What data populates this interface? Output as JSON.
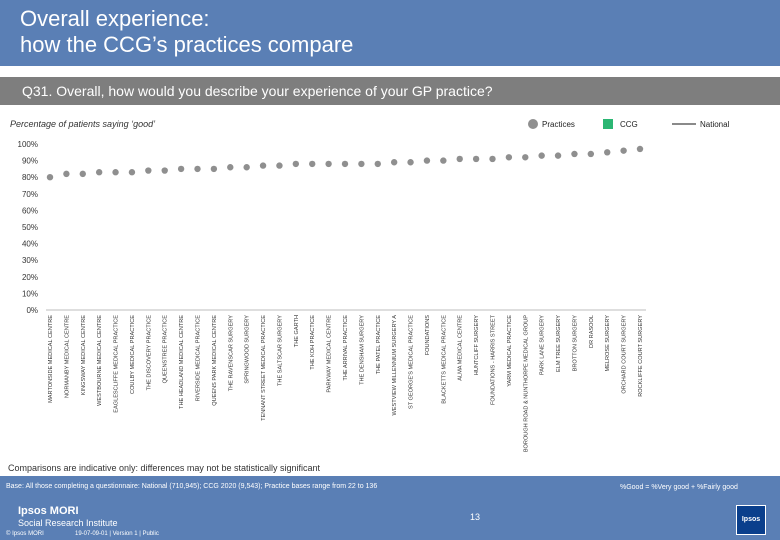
{
  "header": {
    "title_line1": "Overall experience:",
    "title_line2": "how the CCG’s practices compare",
    "question": "Q31. Overall, how would you describe your experience of your GP practice?"
  },
  "subtitle": "Percentage of patients saying ‘good’",
  "legend": {
    "practices_label": "Practices",
    "ccg_label": "CCG",
    "national_label": "National"
  },
  "colors": {
    "practice_dot": "#8f8f8f",
    "ccg": "#2bb673",
    "national_line": "#8a8a8a",
    "band": "#5a7fb5",
    "question_band": "#7e7e7e"
  },
  "chart_data": {
    "type": "scatter",
    "title": "Percentage of patients saying ‘good’",
    "xlabel": "",
    "ylabel": "",
    "ylim": [
      0,
      100
    ],
    "y_ticks": [
      "0%",
      "10%",
      "20%",
      "30%",
      "40%",
      "50%",
      "60%",
      "70%",
      "80%",
      "90%",
      "100%"
    ],
    "grid": false,
    "legend_position": "top-right",
    "categories": [
      "MARTONSIDE MEDICAL CENTRE",
      "NORMANBY MEDICAL CENTRE",
      "KINGSWAY MEDICAL CENTRE",
      "WESTBOURNE MEDICAL CENTRE",
      "EAGLESCLIFFE MEDICAL PRACTICE",
      "COULBY MEDICAL PRACTICE",
      "THE DISCOVERY PRACTICE",
      "QUEENSTREE PRACTICE",
      "THE HEADLAND MEDICAL CENTRE",
      "RIVERSIDE MEDICAL PRACTICE",
      "QUEENS PARK MEDICAL CENTRE",
      "THE RAVENSCAR SURGERY",
      "SPRINGWOOD SURGERY",
      "TENNANT STREET MEDICAL PRACTICE",
      "THE SALTSCAR SURGERY",
      "THE GARTH",
      "THE KOH PRACTICE",
      "PARKWAY MEDICAL CENTRE",
      "THE ARRIVAL PRACTICE",
      "THE DENSHAM SURGERY",
      "THE PATEL PRACTICE",
      "WESTVIEW MILLENNIUM SURGERY A",
      "ST GEORGE'S MEDICAL PRACTICE",
      "FOUNDATIONS",
      "BLACKETTS MEDICAL PRACTICE",
      "ALMA MEDICAL CENTRE",
      "HUNTCLIFF SURGERY",
      "FOUNDATIONS - HARRIS STREET",
      "YARM MEDICAL PRACTICE",
      "BOROUGH ROAD & NUNTHORPE MEDICAL GROUP",
      "PARK LANE SURGERY",
      "ELM TREE SURGERY",
      "BROTTON SURGERY",
      "DR RASOOL",
      "MELROSE SURGERY",
      "ORCHARD COURT SURGERY",
      "ROCKLIFFE COURT SURGERY"
    ],
    "series": [
      {
        "name": "Practices",
        "values": [
          80,
          82,
          82,
          83,
          83,
          83,
          84,
          84,
          85,
          85,
          85,
          86,
          86,
          87,
          87,
          88,
          88,
          88,
          88,
          88,
          88,
          89,
          89,
          90,
          90,
          91,
          91,
          91,
          92,
          92,
          93,
          93,
          94,
          94,
          95,
          96,
          97
        ]
      }
    ]
  },
  "notes": {
    "comparisons": "Comparisons are indicative only: differences may not be statistically significant"
  },
  "footer": {
    "base": "Base: All those completing a questionnaire: National (710,945); CCG 2020 (9,543); Practice bases range from 22 to 136",
    "formula": "%Good = %Very good + %Fairly good",
    "page_number": "13",
    "company": "Ipsos MORI",
    "institute": "Social Research Institute",
    "copyright": "© Ipsos MORI",
    "job_ref": "19-07-09-01 | Version 1 | Public",
    "logo_text": "Ipsos"
  }
}
